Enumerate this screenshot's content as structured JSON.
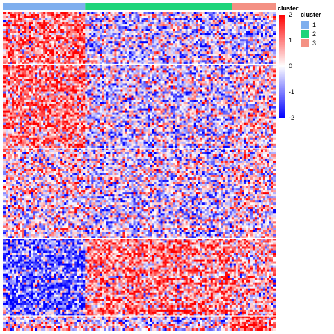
{
  "chart_data": {
    "type": "heatmap",
    "title": "",
    "xlabel": "",
    "ylabel": "",
    "annotation_bar_label": "cluster",
    "column_clusters": [
      {
        "id": "1",
        "fraction": 0.3
      },
      {
        "id": "2",
        "fraction": 0.54
      },
      {
        "id": "3",
        "fraction": 0.16
      }
    ],
    "row_block_fractions": [
      0.165,
      0.265,
      0.28,
      0.245,
      0.145
    ],
    "block_mean_matrix": [
      [
        1.0,
        -0.3,
        -0.5
      ],
      [
        0.9,
        -0.3,
        0.1
      ],
      [
        0.1,
        -0.2,
        0.1
      ],
      [
        -1.2,
        0.9,
        0.5
      ],
      [
        0.1,
        -0.1,
        1.2
      ]
    ],
    "colorbar": {
      "range": [
        -2,
        2
      ],
      "ticks": [
        "2",
        "1",
        "0",
        "-1",
        "-2"
      ],
      "colors": {
        "low": "#0000ff",
        "mid": "#ffffff",
        "high": "#ff0000"
      }
    },
    "legend": {
      "title": "cluster",
      "placement": "right",
      "entries": [
        {
          "label": "1",
          "color": "#7fafee"
        },
        {
          "label": "2",
          "color": "#1ed47a"
        },
        {
          "label": "3",
          "color": "#f49184"
        }
      ]
    }
  }
}
